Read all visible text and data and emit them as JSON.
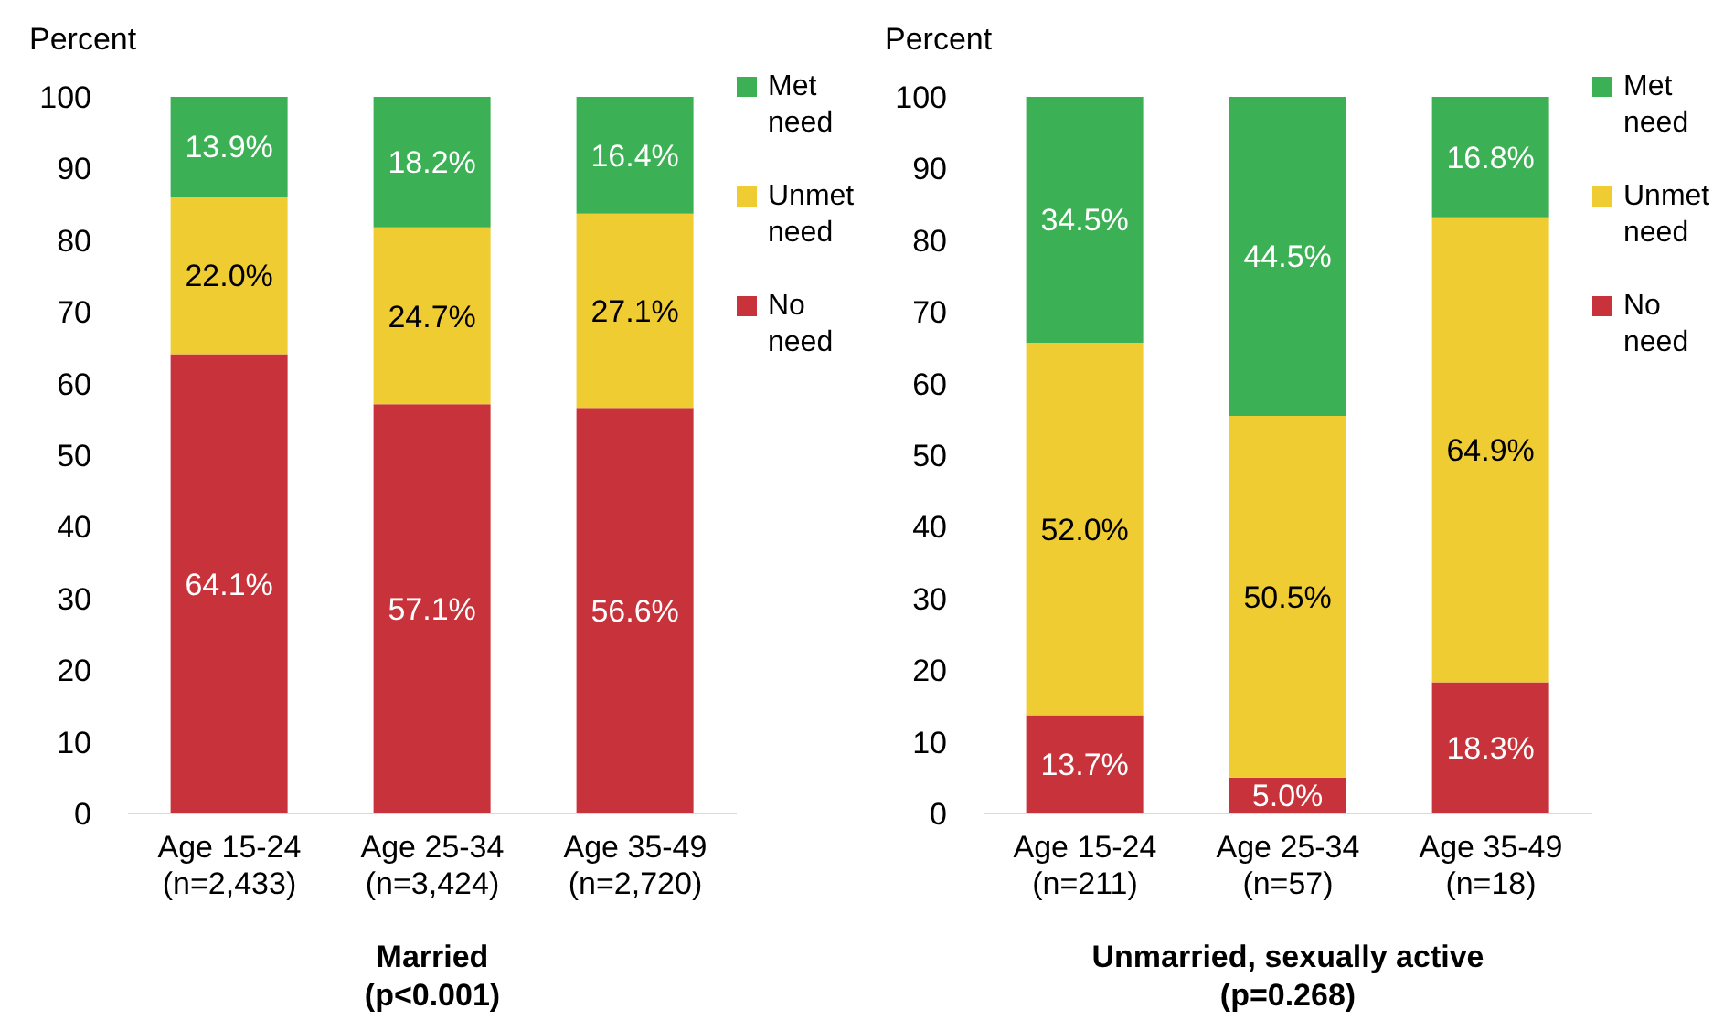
{
  "chart_data": [
    {
      "type": "bar",
      "stacked": true,
      "xlabel": "Married\n(p<0.001)",
      "ylabel": "Percent",
      "categories": [
        "Age 15-24\n(n=2,433)",
        "Age 25-34\n(n=3,424)",
        "Age 35-49\n(n=2,720)"
      ],
      "ylim": [
        0,
        100
      ],
      "yticks": [
        0,
        10,
        20,
        30,
        40,
        50,
        60,
        70,
        80,
        90,
        100
      ],
      "grid": false,
      "legend": "right",
      "series": [
        {
          "name": "No need",
          "color": "#c8323a",
          "values": [
            64.1,
            57.1,
            56.6
          ],
          "value_labels": [
            "64.1%",
            "57.1%",
            "56.6%"
          ]
        },
        {
          "name": "Unmet need",
          "color": "#f0cc33",
          "values": [
            22.0,
            24.7,
            27.1
          ],
          "value_labels": [
            "22.0%",
            "24.7%",
            "27.1%"
          ]
        },
        {
          "name": "Met need",
          "color": "#3cb054",
          "values": [
            13.9,
            18.2,
            16.4
          ],
          "value_labels": [
            "13.9%",
            "18.2%",
            "16.4%"
          ]
        }
      ]
    },
    {
      "type": "bar",
      "stacked": true,
      "xlabel": "Unmarried, sexually active\n(p=0.268)",
      "ylabel": "Percent",
      "categories": [
        "Age 15-24\n(n=211)",
        "Age 25-34\n(n=57)",
        "Age 35-49\n(n=18)"
      ],
      "ylim": [
        0,
        100
      ],
      "yticks": [
        0,
        10,
        20,
        30,
        40,
        50,
        60,
        70,
        80,
        90,
        100
      ],
      "grid": false,
      "legend": "right",
      "series": [
        {
          "name": "No need",
          "color": "#c8323a",
          "values": [
            13.7,
            5.0,
            18.3
          ],
          "value_labels": [
            "13.7%",
            "5.0%",
            "18.3%"
          ]
        },
        {
          "name": "Unmet need",
          "color": "#f0cc33",
          "values": [
            52.0,
            50.5,
            64.9
          ],
          "value_labels": [
            "52.0%",
            "50.5%",
            "64.9%"
          ]
        },
        {
          "name": "Met need",
          "color": "#3cb054",
          "values": [
            34.5,
            44.5,
            16.8
          ],
          "value_labels": [
            "34.5%",
            "44.5%",
            "16.8%"
          ]
        }
      ]
    }
  ]
}
